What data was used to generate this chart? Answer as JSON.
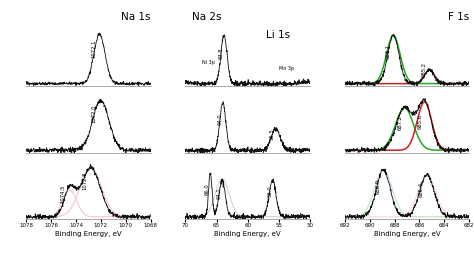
{
  "title_col1": "Na 1s",
  "title_col2": "Na 2s",
  "title_col2b": "Li 1s",
  "title_col3": "F 1s",
  "xlabel": "Binding Energy, eV",
  "col1_xlim": [
    1078,
    1068
  ],
  "col1_xticks": [
    1078,
    1076,
    1074,
    1072,
    1070,
    1068
  ],
  "col1_xticklabels": [
    "1078",
    "1076",
    "1074",
    "1072",
    "1070",
    "1068"
  ],
  "col2_xlim": [
    70,
    50
  ],
  "col2_xticks": [
    70,
    65,
    60,
    55,
    50
  ],
  "col2_xticklabels": [
    "70",
    "65",
    "60",
    "55",
    "50"
  ],
  "col3_xlim": [
    692,
    682
  ],
  "col3_xticks": [
    692,
    690,
    688,
    686,
    684,
    682
  ],
  "col3_xticklabels": [
    "692",
    "690",
    "688",
    "686",
    "684",
    "682"
  ],
  "bg_color": "#ffffff",
  "spectrum_color": "#111111",
  "fit_green": "#22aa22",
  "fit_red": "#cc2222",
  "fit_pink": "#f0a0b0",
  "fit_lightpink": "#f8c8d0",
  "fit_lightgreen": "#aaddaa"
}
